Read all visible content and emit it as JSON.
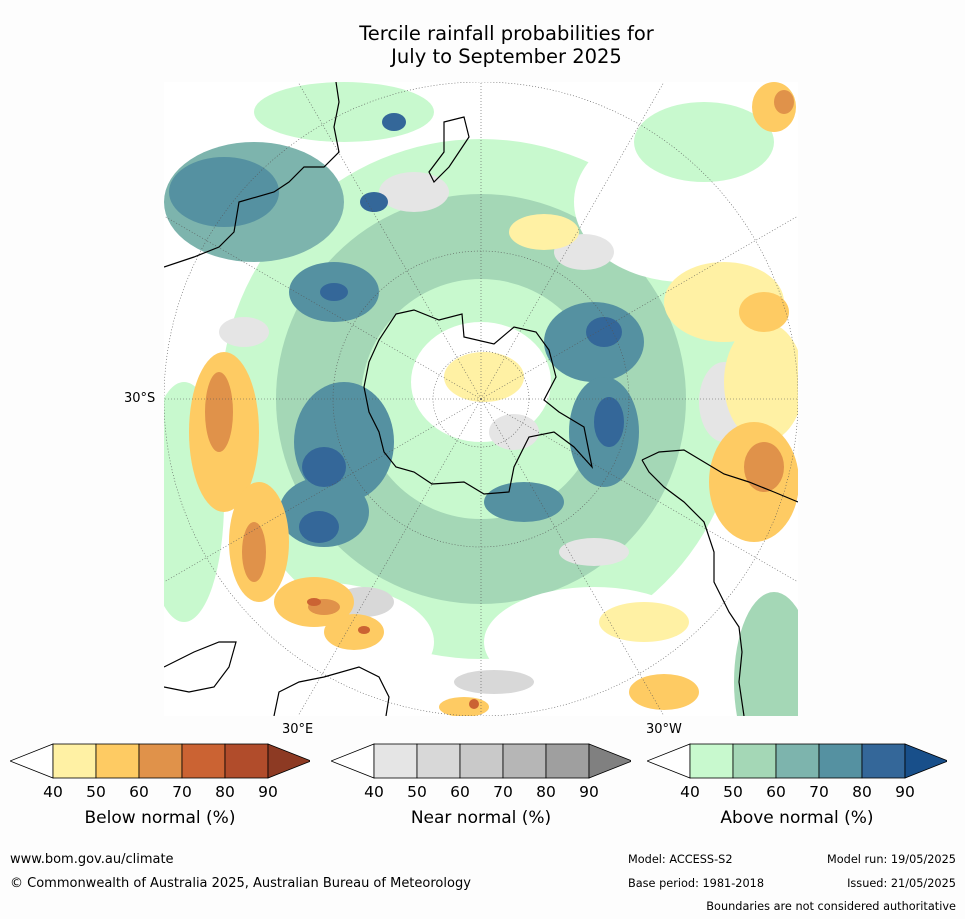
{
  "title_line1": "Tercile rainfall probabilities for",
  "title_line2": "July to September 2025",
  "axis_labels": {
    "lat_30s": "30°S",
    "lon_30e": "30°E",
    "lon_30w": "30°W"
  },
  "colors": {
    "below": [
      "#fff1a4",
      "#fecb63",
      "#e0924a",
      "#cb6333",
      "#b14c2b",
      "#8d3a23"
    ],
    "near": [
      "#e5e5e5",
      "#d8d8d8",
      "#c9c9c9",
      "#b6b6b6",
      "#9f9f9f",
      "#808080"
    ],
    "above": [
      "#c8f9ce",
      "#a4d7b6",
      "#7db4ad",
      "#5591a1",
      "#346799",
      "#184f8a"
    ],
    "land_outline": "#000000",
    "borders": "#888888"
  },
  "legends": [
    {
      "title": "Below normal (%)",
      "ticks": [
        "40",
        "50",
        "60",
        "70",
        "80",
        "90"
      ]
    },
    {
      "title": "Near normal (%)",
      "ticks": [
        "40",
        "50",
        "60",
        "70",
        "80",
        "90"
      ]
    },
    {
      "title": "Above normal (%)",
      "ticks": [
        "40",
        "50",
        "60",
        "70",
        "80",
        "90"
      ]
    }
  ],
  "footer": {
    "website": "www.bom.gov.au/climate",
    "copyright": "© Commonwealth of Australia 2025, Australian Bureau of Meteorology",
    "model": "Model: ACCESS-S2",
    "model_run": "Model run: 19/05/2025",
    "base_period": "Base period: 1981-2018",
    "issued": "Issued: 21/05/2025",
    "boundaries": "Boundaries are not considered authoritative"
  }
}
